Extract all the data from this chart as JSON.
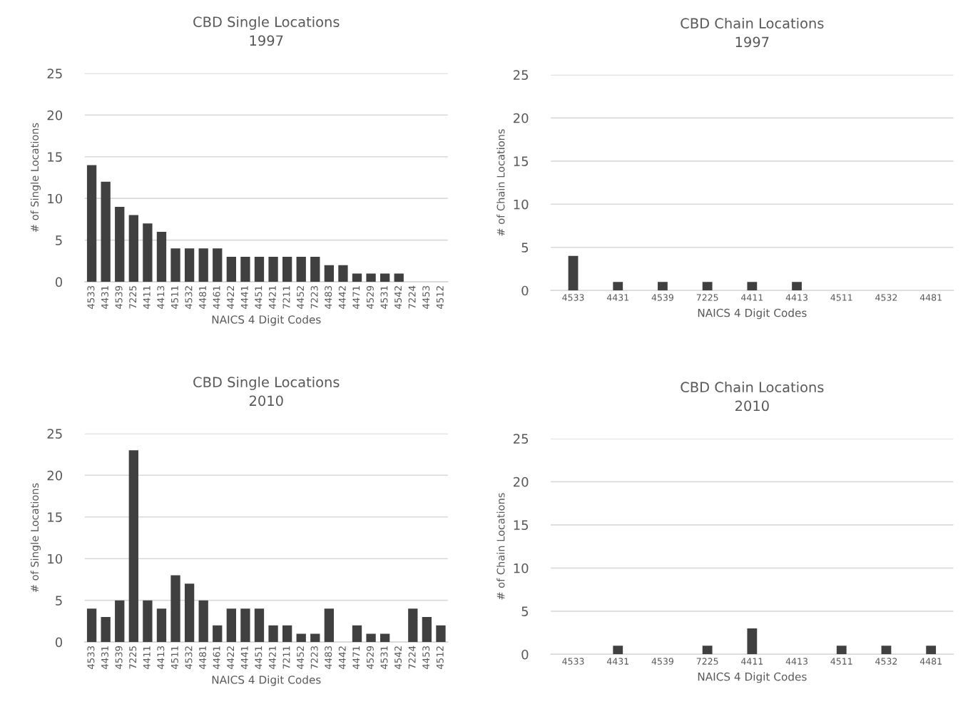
{
  "chart_data": [
    {
      "type": "bar",
      "title": "CBD Single Locations\n1997",
      "xlabel": "NAICS 4 Digit Codes",
      "ylabel": "# of Single Locations",
      "categories": [
        "4533",
        "4431",
        "4539",
        "7225",
        "4411",
        "4413",
        "4511",
        "4532",
        "4481",
        "4461",
        "4422",
        "4441",
        "4451",
        "4421",
        "7211",
        "4452",
        "7223",
        "4483",
        "4442",
        "4471",
        "4529",
        "4531",
        "4542",
        "7224",
        "4453",
        "4512"
      ],
      "values": [
        14,
        12,
        9,
        8,
        7,
        6,
        4,
        4,
        4,
        4,
        3,
        3,
        3,
        3,
        3,
        3,
        3,
        2,
        2,
        1,
        1,
        1,
        1,
        0,
        0,
        0
      ],
      "color": "#404040",
      "ylim": [
        0,
        25
      ],
      "yticks": [
        0,
        5,
        10,
        15,
        20,
        25
      ],
      "grid": "y"
    },
    {
      "type": "bar",
      "title": "CBD Chain Locations\n1997",
      "xlabel": "NAICS 4 Digit Codes",
      "ylabel": "# of Chain Locations",
      "categories": [
        "4533",
        "4431",
        "4539",
        "7225",
        "4411",
        "4413",
        "4511",
        "4532",
        "4481"
      ],
      "values": [
        4,
        1,
        1,
        1,
        1,
        1,
        0,
        0,
        0
      ],
      "color": "#404040",
      "ylim": [
        0,
        25
      ],
      "yticks": [
        0,
        5,
        10,
        15,
        20,
        25
      ],
      "grid": "y"
    },
    {
      "type": "bar",
      "title": "CBD Single Locations\n2010",
      "xlabel": "NAICS 4 Digit Codes",
      "ylabel": "# of Single Locations",
      "categories": [
        "4533",
        "4431",
        "4539",
        "7225",
        "4411",
        "4413",
        "4511",
        "4532",
        "4481",
        "4461",
        "4422",
        "4441",
        "4451",
        "4421",
        "7211",
        "4452",
        "7223",
        "4483",
        "4442",
        "4471",
        "4529",
        "4531",
        "4542",
        "7224",
        "4453",
        "4512"
      ],
      "values": [
        4,
        3,
        5,
        23,
        5,
        4,
        8,
        7,
        5,
        2,
        4,
        4,
        4,
        2,
        2,
        1,
        1,
        4,
        0,
        2,
        1,
        1,
        0,
        4,
        3,
        2
      ],
      "color": "#404040",
      "ylim": [
        0,
        25
      ],
      "yticks": [
        0,
        5,
        10,
        15,
        20,
        25
      ],
      "grid": "y"
    },
    {
      "type": "bar",
      "title": "CBD Chain Locations\n2010",
      "xlabel": "NAICS 4 Digit Codes",
      "ylabel": "# of Chain Locations",
      "categories": [
        "4533",
        "4431",
        "4539",
        "7225",
        "4411",
        "4413",
        "4511",
        "4532",
        "4481"
      ],
      "values": [
        0,
        1,
        0,
        1,
        3,
        0,
        1,
        1,
        1
      ],
      "color": "#404040",
      "ylim": [
        0,
        25
      ],
      "yticks": [
        0,
        5,
        10,
        15,
        20,
        25
      ],
      "grid": "y"
    }
  ]
}
